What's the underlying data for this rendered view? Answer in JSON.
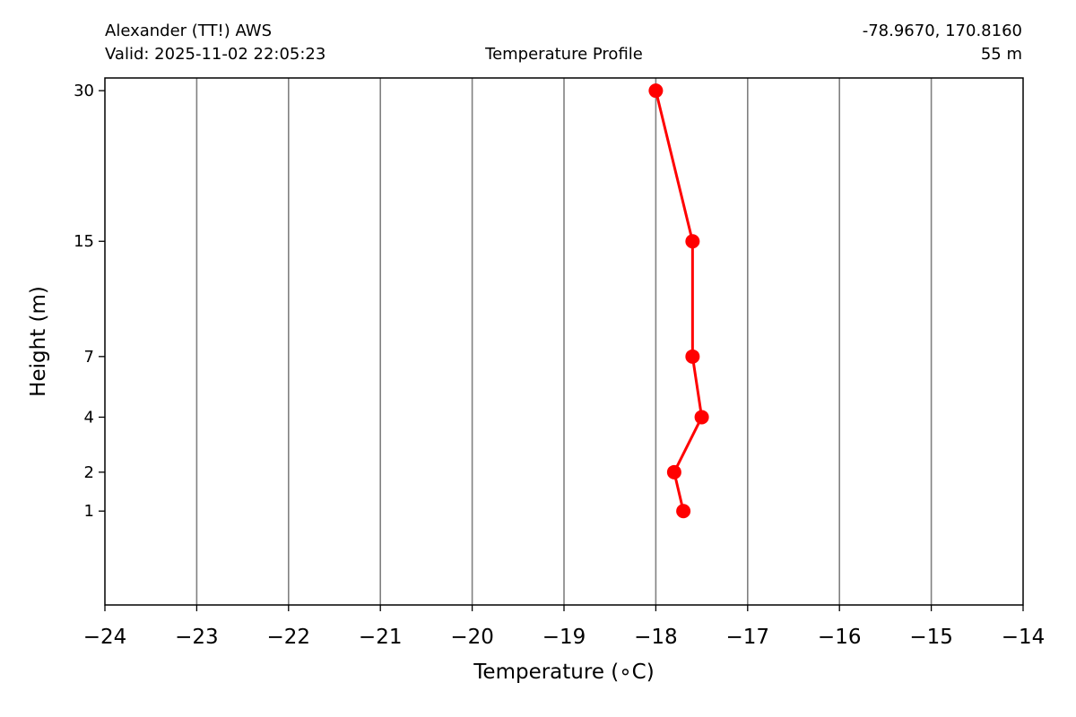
{
  "header": {
    "station": "Alexander (TT!) AWS",
    "valid": "Valid: 2025-11-02 22:05:23",
    "title": "Temperature Profile",
    "coordinates": "-78.9670, 170.8160",
    "elevation": "55 m"
  },
  "colors": {
    "series": "#ff0000",
    "grid": "#808080",
    "axis": "#000000"
  },
  "chart_data": {
    "type": "line",
    "title": "Temperature Profile",
    "xlabel": "Temperature (∘C)",
    "ylabel": "Height (m)",
    "xlim": [
      -24,
      -14
    ],
    "ylim": [
      0,
      31.5
    ],
    "x_ticks": [
      -24,
      -23,
      -22,
      -21,
      -20,
      -19,
      -18,
      -17,
      -16,
      -15,
      -14
    ],
    "x_tick_labels": [
      "−24",
      "−23",
      "−22",
      "−21",
      "−20",
      "−19",
      "−18",
      "−17",
      "−16",
      "−15",
      "−14"
    ],
    "y_ticks": [
      1,
      2,
      4,
      7,
      15,
      30
    ],
    "y_tick_labels": [
      "1",
      "2",
      "4",
      "7",
      "15",
      "30"
    ],
    "y_scale": "square-root",
    "grid": "vertical",
    "legend": false,
    "series": [
      {
        "marker": "circle",
        "points": [
          {
            "height": 1,
            "temperature": -17.7
          },
          {
            "height": 2,
            "temperature": -17.8
          },
          {
            "height": 4,
            "temperature": -17.5
          },
          {
            "height": 7,
            "temperature": -17.6
          },
          {
            "height": 15,
            "temperature": -17.6
          },
          {
            "height": 30,
            "temperature": -18.0
          }
        ]
      }
    ]
  }
}
